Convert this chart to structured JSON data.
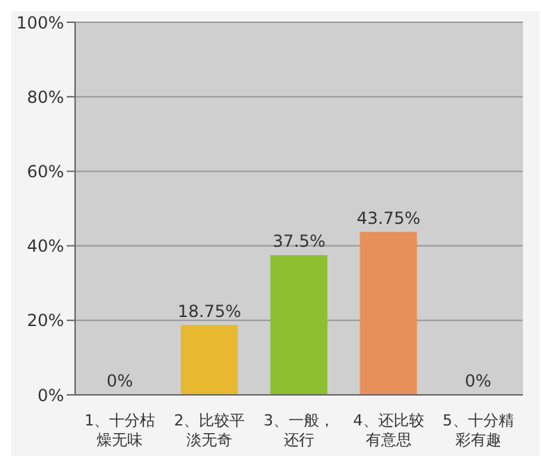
{
  "chart_data": {
    "type": "bar",
    "categories": [
      "1、十分枯燥无味",
      "2、比较平淡无奇",
      "3、一般，还行",
      "4、还比较有意思",
      "5、十分精彩有趣"
    ],
    "values": [
      0,
      18.75,
      37.5,
      43.75,
      0
    ],
    "colors": [
      "#a8d0f0",
      "#e8b830",
      "#8cc030",
      "#e8905a",
      "#30a0a0"
    ],
    "value_labels": [
      "0%",
      "18.75%",
      "37.5%",
      "43.75%",
      "0%"
    ],
    "ylim": [
      0,
      100
    ],
    "yticks": [
      {
        "value": 0,
        "label": "0%"
      },
      {
        "value": 20,
        "label": "20%"
      },
      {
        "value": 40,
        "label": "40%"
      },
      {
        "value": 60,
        "label": "60%"
      },
      {
        "value": 80,
        "label": "80%"
      },
      {
        "value": 100,
        "label": "100%"
      }
    ],
    "grid": "y"
  }
}
